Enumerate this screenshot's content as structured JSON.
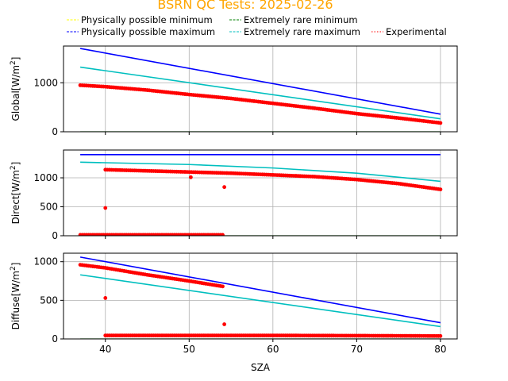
{
  "title": "BSRN QC Tests: 2025-02-26",
  "title_color": "#ffa500",
  "legend": {
    "placement": "top",
    "entries": [
      {
        "label": "Physically possible minimum",
        "color": "#ffff00",
        "style": "dashed"
      },
      {
        "label": "Extremely rare minimum",
        "color": "#008000",
        "style": "dashed"
      },
      {
        "label": "Physically possible maximum",
        "color": "#0000ff",
        "style": "dashed"
      },
      {
        "label": "Extremely rare maximum",
        "color": "#00bfbf",
        "style": "dashed"
      },
      {
        "label": "Experimental",
        "color": "#ff0000",
        "style": "dotted"
      }
    ]
  },
  "colors": {
    "phys_min": "#ffff00",
    "rare_min": "#008000",
    "phys_max": "#0000ff",
    "rare_max": "#00bfbf",
    "experimental": "#ff0000",
    "grid": "#b0b0b0"
  },
  "chart_data": [
    {
      "type": "line",
      "ylabel": "Global[W/m$^2$]",
      "ylabel_text": "Global[W/m",
      "xlim": [
        35,
        82
      ],
      "ylim": [
        0,
        1750
      ],
      "yticks": [
        0,
        1000
      ],
      "grid": true,
      "series": [
        {
          "name": "Physically possible minimum",
          "x": [
            37,
            80
          ],
          "values": [
            -4,
            -4
          ]
        },
        {
          "name": "Extremely rare minimum",
          "x": [
            37,
            80
          ],
          "values": [
            -2,
            -2
          ]
        },
        {
          "name": "Physically possible maximum",
          "x": [
            37,
            80
          ],
          "values": [
            1700,
            360
          ]
        },
        {
          "name": "Extremely rare maximum",
          "x": [
            37,
            80
          ],
          "values": [
            1320,
            265
          ]
        },
        {
          "name": "Experimental",
          "x": [
            37,
            40,
            45,
            50,
            55,
            60,
            65,
            70,
            75,
            80
          ],
          "values": [
            950,
            920,
            850,
            760,
            680,
            580,
            480,
            370,
            280,
            180
          ]
        }
      ]
    },
    {
      "type": "line",
      "ylabel": "Direct[W/m$^2$]",
      "ylabel_text": "Direct[W/m",
      "xlim": [
        35,
        82
      ],
      "ylim": [
        0,
        1480
      ],
      "yticks": [
        0,
        500,
        1000
      ],
      "grid": true,
      "series": [
        {
          "name": "Physically possible minimum",
          "x": [
            37,
            80
          ],
          "values": [
            -4,
            -4
          ]
        },
        {
          "name": "Extremely rare minimum",
          "x": [
            37,
            80
          ],
          "values": [
            -2,
            -2
          ]
        },
        {
          "name": "Physically possible maximum",
          "x": [
            37,
            80
          ],
          "values": [
            1400,
            1400
          ]
        },
        {
          "name": "Extremely rare maximum",
          "x": [
            37,
            50,
            60,
            70,
            80
          ],
          "values": [
            1270,
            1230,
            1170,
            1080,
            940
          ]
        },
        {
          "name": "Experimental",
          "x": [
            40,
            45,
            50,
            55,
            60,
            65,
            70,
            75,
            80
          ],
          "values": [
            1140,
            1120,
            1100,
            1080,
            1050,
            1020,
            970,
            900,
            800
          ]
        },
        {
          "name": "Experimental (night)",
          "x": [
            37,
            40,
            45,
            50,
            54
          ],
          "values": [
            15,
            15,
            15,
            15,
            15
          ]
        },
        {
          "name": "Experimental (outliers)",
          "x": [
            40,
            50.2,
            54.2
          ],
          "values": [
            480,
            1010,
            840
          ]
        }
      ]
    },
    {
      "type": "line",
      "ylabel": "Diffuse[W/m$^2$]",
      "ylabel_text": "Diffuse[W/m",
      "xlabel": "SZA",
      "xlim": [
        35,
        82
      ],
      "ylim": [
        0,
        1110
      ],
      "yticks": [
        0,
        500,
        1000
      ],
      "xticks": [
        40,
        50,
        60,
        70,
        80
      ],
      "grid": true,
      "series": [
        {
          "name": "Physically possible minimum",
          "x": [
            37,
            80
          ],
          "values": [
            -4,
            -4
          ]
        },
        {
          "name": "Extremely rare minimum",
          "x": [
            37,
            80
          ],
          "values": [
            -2,
            -2
          ]
        },
        {
          "name": "Physically possible maximum",
          "x": [
            37,
            80
          ],
          "values": [
            1060,
            210
          ]
        },
        {
          "name": "Extremely rare maximum",
          "x": [
            37,
            80
          ],
          "values": [
            830,
            160
          ]
        },
        {
          "name": "Experimental",
          "x": [
            37,
            40,
            45,
            50,
            54
          ],
          "values": [
            960,
            920,
            830,
            750,
            680
          ]
        },
        {
          "name": "Experimental (low)",
          "x": [
            40,
            50,
            60,
            70,
            80
          ],
          "values": [
            45,
            45,
            45,
            42,
            38
          ]
        },
        {
          "name": "Experimental (outliers)",
          "x": [
            40,
            54.2
          ],
          "values": [
            530,
            190
          ]
        }
      ]
    }
  ]
}
